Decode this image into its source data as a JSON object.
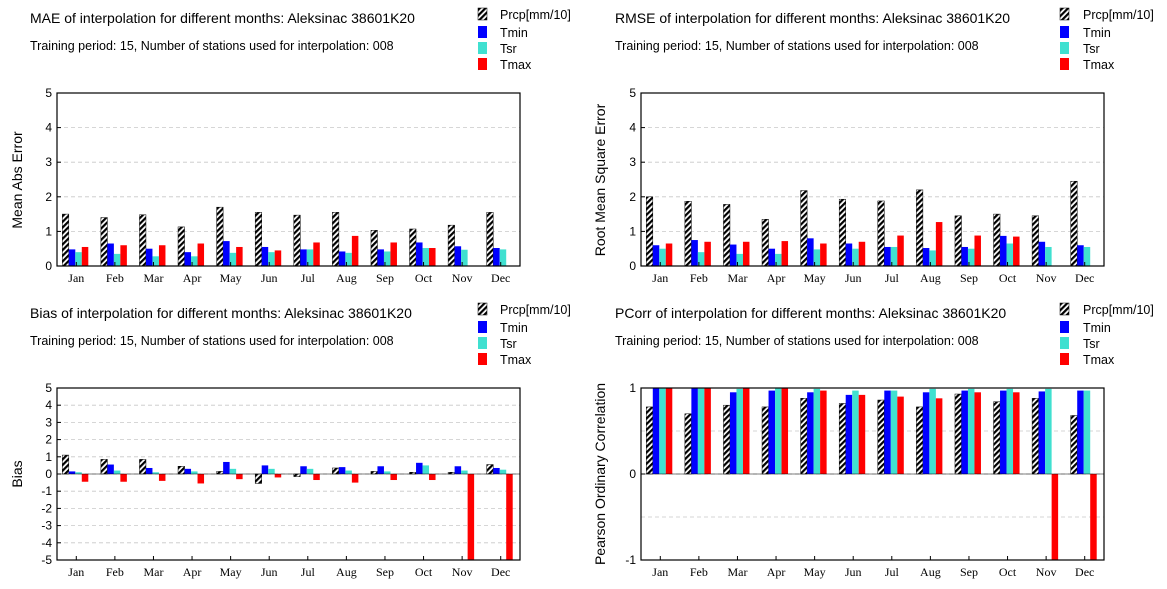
{
  "chart_data": [
    {
      "type": "bar",
      "title": "MAE of interpolation for different months: Aleksinac  38601K20",
      "subtitle": "Training period: 15, Number of stations used for interpolation: 008",
      "ylabel": "Mean Abs Error",
      "ylim": [
        0,
        5
      ],
      "yticks": [
        "0",
        "1",
        "2",
        "3",
        "4",
        "5"
      ],
      "categories": [
        "Jan",
        "Feb",
        "Mar",
        "Apr",
        "May",
        "Jun",
        "Jul",
        "Aug",
        "Sep",
        "Oct",
        "Nov",
        "Dec"
      ],
      "series": [
        {
          "name": "Prcp[mm/10]",
          "values": [
            1.5,
            1.4,
            1.48,
            1.13,
            1.7,
            1.55,
            1.47,
            1.55,
            1.03,
            1.07,
            1.18,
            1.55
          ]
        },
        {
          "name": "Tmin",
          "values": [
            0.48,
            0.65,
            0.5,
            0.4,
            0.72,
            0.55,
            0.48,
            0.42,
            0.48,
            0.68,
            0.57,
            0.52
          ]
        },
        {
          "name": "Tsr",
          "values": [
            0.4,
            0.35,
            0.28,
            0.28,
            0.38,
            0.4,
            0.48,
            0.38,
            0.42,
            0.52,
            0.47,
            0.48
          ]
        },
        {
          "name": "Tmax",
          "values": [
            0.55,
            0.6,
            0.6,
            0.65,
            0.55,
            0.45,
            0.68,
            0.87,
            0.68,
            0.52,
            0.0,
            0.0
          ]
        }
      ],
      "colors": [
        "#000000",
        "#0000ff",
        "#40e0d0",
        "#ff0000"
      ],
      "legend": "top-right"
    },
    {
      "type": "bar",
      "title": "RMSE of interpolation for different months: Aleksinac  38601K20",
      "subtitle": "Training period: 15, Number of stations used for interpolation: 008",
      "ylabel": "Root Mean Square Error",
      "ylim": [
        0,
        5
      ],
      "yticks": [
        "0",
        "1",
        "2",
        "3",
        "4",
        "5"
      ],
      "categories": [
        "Jan",
        "Feb",
        "Mar",
        "Apr",
        "May",
        "Jun",
        "Jul",
        "Aug",
        "Sep",
        "Oct",
        "Nov",
        "Dec"
      ],
      "series": [
        {
          "name": "Prcp[mm/10]",
          "values": [
            2.0,
            1.87,
            1.78,
            1.35,
            2.18,
            1.93,
            1.88,
            2.2,
            1.45,
            1.5,
            1.45,
            2.45
          ]
        },
        {
          "name": "Tmin",
          "values": [
            0.6,
            0.75,
            0.62,
            0.5,
            0.8,
            0.65,
            0.55,
            0.52,
            0.55,
            0.87,
            0.7,
            0.6
          ]
        },
        {
          "name": "Tsr",
          "values": [
            0.5,
            0.4,
            0.35,
            0.35,
            0.48,
            0.5,
            0.55,
            0.45,
            0.5,
            0.65,
            0.55,
            0.55
          ]
        },
        {
          "name": "Tmax",
          "values": [
            0.65,
            0.7,
            0.7,
            0.72,
            0.65,
            0.7,
            0.88,
            1.27,
            0.88,
            0.85,
            0.0,
            0.0
          ]
        }
      ],
      "colors": [
        "#000000",
        "#0000ff",
        "#40e0d0",
        "#ff0000"
      ],
      "legend": "top-right"
    },
    {
      "type": "bar",
      "title": "Bias of interpolation for different months: Aleksinac  38601K20",
      "subtitle": "Training period: 15, Number of stations used for interpolation: 008",
      "ylabel": "Bias",
      "ylim": [
        -5,
        5
      ],
      "yticks": [
        "-5",
        "-4",
        "-3",
        "-2",
        "-1",
        "0",
        "1",
        "2",
        "3",
        "4",
        "5"
      ],
      "categories": [
        "Jan",
        "Feb",
        "Mar",
        "Apr",
        "May",
        "Jun",
        "Jul",
        "Aug",
        "Sep",
        "Oct",
        "Nov",
        "Dec"
      ],
      "series": [
        {
          "name": "Prcp[mm/10]",
          "values": [
            1.1,
            0.85,
            0.85,
            0.45,
            0.15,
            -0.55,
            -0.15,
            0.35,
            0.15,
            0.1,
            0.1,
            0.55
          ]
        },
        {
          "name": "Tmin",
          "values": [
            0.15,
            0.55,
            0.35,
            0.3,
            0.7,
            0.5,
            0.45,
            0.4,
            0.45,
            0.65,
            0.45,
            0.35
          ]
        },
        {
          "name": "Tsr",
          "values": [
            0.1,
            0.2,
            0.1,
            0.15,
            0.3,
            0.3,
            0.3,
            0.2,
            0.15,
            0.5,
            0.2,
            0.25
          ]
        },
        {
          "name": "Tmax",
          "values": [
            -0.45,
            -0.45,
            -0.4,
            -0.55,
            -0.3,
            -0.2,
            -0.35,
            -0.5,
            -0.35,
            -0.35,
            -5.0,
            -5.0
          ]
        }
      ],
      "colors": [
        "#000000",
        "#0000ff",
        "#40e0d0",
        "#ff0000"
      ],
      "legend": "top-right"
    },
    {
      "type": "bar",
      "title": "PCorr of interpolation for different months: Aleksinac  38601K20",
      "subtitle": "Training period: 15, Number of stations used for interpolation: 008",
      "ylabel": "Pearson Ordinary Correlation",
      "ylim": [
        -1,
        1
      ],
      "yticks": [
        "-1",
        "0",
        "1"
      ],
      "categories": [
        "Jan",
        "Feb",
        "Mar",
        "Apr",
        "May",
        "Jun",
        "Jul",
        "Aug",
        "Sep",
        "Oct",
        "Nov",
        "Dec"
      ],
      "series": [
        {
          "name": "Prcp[mm/10]",
          "values": [
            0.78,
            0.7,
            0.8,
            0.78,
            0.88,
            0.82,
            0.86,
            0.78,
            0.93,
            0.84,
            0.88,
            0.68
          ]
        },
        {
          "name": "Tmin",
          "values": [
            1.0,
            1.0,
            0.95,
            0.97,
            0.95,
            0.92,
            0.97,
            0.95,
            0.97,
            0.97,
            0.96,
            0.97
          ]
        },
        {
          "name": "Tsr",
          "values": [
            1.0,
            1.0,
            0.99,
            1.0,
            0.99,
            0.97,
            0.97,
            0.99,
            0.99,
            0.99,
            0.99,
            0.97
          ]
        },
        {
          "name": "Tmax",
          "values": [
            1.0,
            1.0,
            1.0,
            1.0,
            0.97,
            0.92,
            0.9,
            0.88,
            0.95,
            0.95,
            -1.0,
            -1.0
          ]
        }
      ],
      "colors": [
        "#000000",
        "#0000ff",
        "#40e0d0",
        "#ff0000"
      ],
      "legend": "top-right"
    }
  ]
}
